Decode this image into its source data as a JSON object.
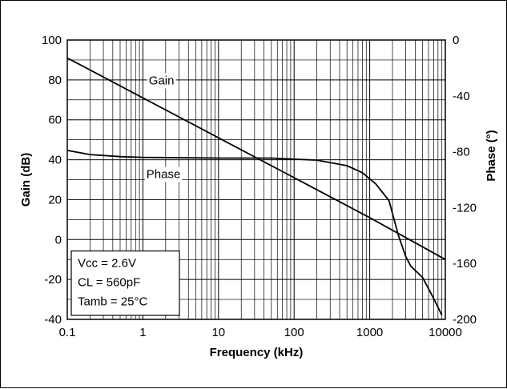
{
  "chart_data": {
    "type": "line",
    "xlabel": "Frequency (kHz)",
    "ylabel": "Gain (dB)",
    "y2label": "Phase (°)",
    "xscale": "log",
    "xlim": [
      0.1,
      10000
    ],
    "ylim": [
      -40,
      100
    ],
    "y2lim": [
      -200,
      0
    ],
    "grid": true,
    "x_ticks": [
      "0.1",
      "1",
      "10",
      "100",
      "1000",
      "10000"
    ],
    "y_ticks": [
      "100",
      "80",
      "60",
      "40",
      "20",
      "0",
      "-20",
      "-40"
    ],
    "y2_ticks": [
      "0",
      "-40",
      "-80",
      "-120",
      "-160",
      "-200"
    ],
    "series": [
      {
        "name": "Gain",
        "axis": "left",
        "x": [
          0.1,
          1,
          10,
          100,
          1000,
          3000,
          10000
        ],
        "y": [
          91,
          71,
          51,
          31,
          11,
          1,
          -10
        ]
      },
      {
        "name": "Phase",
        "axis": "right",
        "x": [
          0.1,
          0.2,
          0.5,
          1,
          10,
          50,
          200,
          500,
          800,
          1200,
          1800,
          2400,
          3000,
          3500,
          5000,
          7000,
          9000
        ],
        "y": [
          -79,
          -82,
          -83.5,
          -84,
          -84.5,
          -84.5,
          -86,
          -90,
          -95,
          -103,
          -115,
          -140,
          -155,
          -162,
          -170,
          -185,
          -197
        ]
      }
    ],
    "annotations": [
      "Vcc = 2.6V",
      "CL = 560pF",
      "Tamb = 25°C"
    ]
  }
}
